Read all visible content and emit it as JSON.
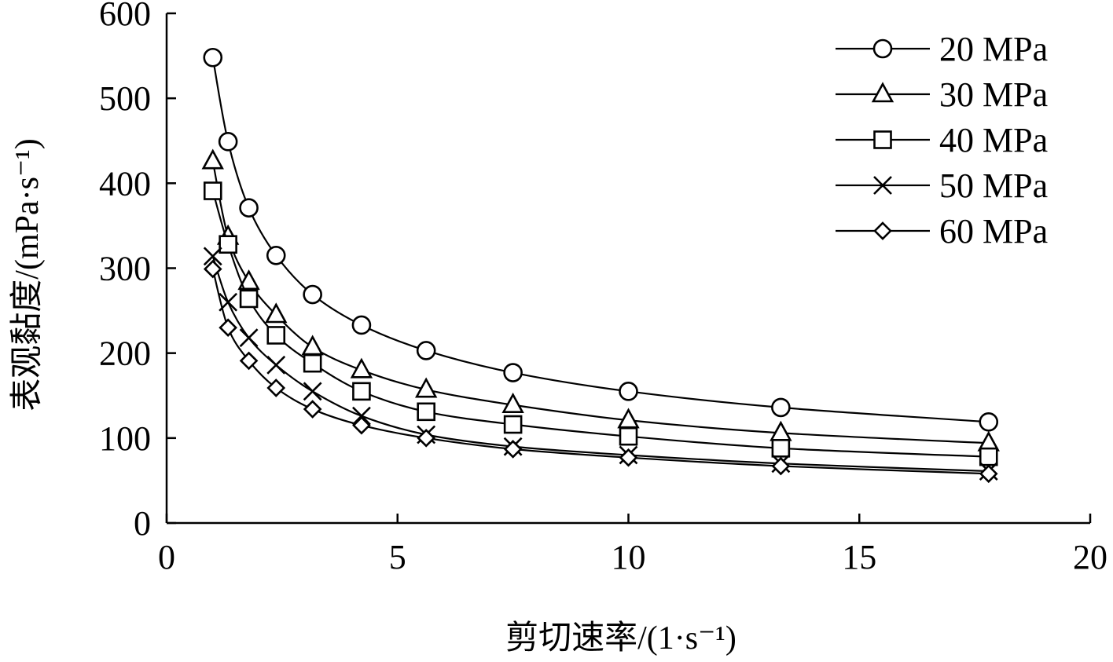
{
  "chart_data": {
    "type": "line",
    "xlabel": "剪切速率/(1·s⁻¹)",
    "ylabel": "表观黏度/(mPa·s⁻¹)",
    "xlim": [
      0,
      20
    ],
    "ylim": [
      0,
      600
    ],
    "x_ticks": [
      "0",
      "5",
      "10",
      "15",
      "20"
    ],
    "y_ticks": [
      "0",
      "100",
      "200",
      "300",
      "400",
      "500",
      "600"
    ],
    "grid": false,
    "legend_position": "top-right",
    "x": [
      1.0,
      1.33,
      1.78,
      2.37,
      3.16,
      4.22,
      5.62,
      7.5,
      10.0,
      13.3,
      17.8
    ],
    "series": [
      {
        "name": "20 MPa",
        "marker": "circle",
        "values": [
          548,
          449,
          371,
          315,
          269,
          233,
          203,
          177,
          155,
          136,
          119
        ]
      },
      {
        "name": "30 MPa",
        "marker": "triangle",
        "values": [
          426,
          337,
          284,
          245,
          207,
          180,
          157,
          139,
          121,
          106,
          94
        ]
      },
      {
        "name": "40 MPa",
        "marker": "square",
        "values": [
          391,
          328,
          264,
          221,
          188,
          155,
          131,
          116,
          102,
          88,
          78
        ]
      },
      {
        "name": "50 MPa",
        "marker": "cross",
        "values": [
          314,
          260,
          218,
          186,
          155,
          126,
          104,
          90,
          80,
          70,
          61
        ]
      },
      {
        "name": "60 MPa",
        "marker": "diamond",
        "values": [
          299,
          230,
          191,
          159,
          134,
          115,
          100,
          87,
          77,
          67,
          58
        ]
      }
    ]
  }
}
